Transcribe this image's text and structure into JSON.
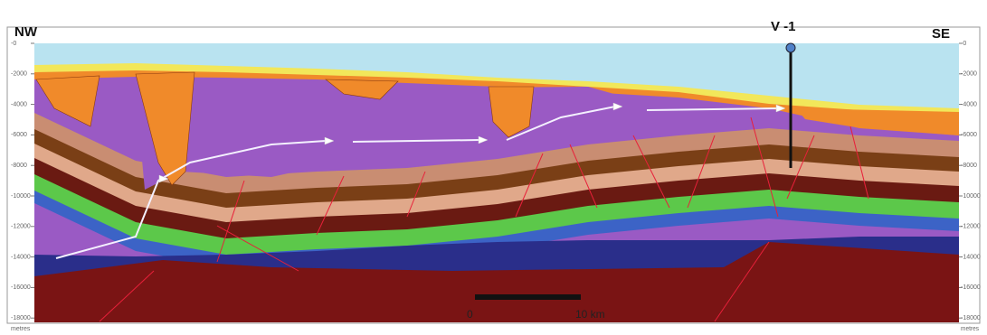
{
  "labels": {
    "left": "NW",
    "right": "SE",
    "well": "V -1"
  },
  "scale_bar": {
    "start": "0",
    "end": "10 km"
  },
  "depth_axis": {
    "ticks": [
      "-0",
      "-2000",
      "-4000",
      "-6000",
      "-8000",
      "-10000",
      "-12000",
      "-14000",
      "-16000",
      "-18000"
    ],
    "unit": "metres"
  }
}
